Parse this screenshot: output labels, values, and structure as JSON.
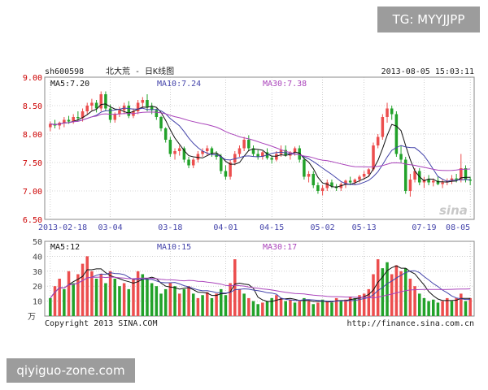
{
  "header": {
    "symbol": "sh600598",
    "name": "北大荒 - 日K线图",
    "datetime": "2013-08-05 15:03:11"
  },
  "price_panel": {
    "ma5_label": "MA5:7.20",
    "ma10_label": "MA10:7.24",
    "ma30_label": "MA30:7.38"
  },
  "volume_panel": {
    "ma5_label": "MA5:12",
    "ma10_label": "MA10:15",
    "ma30_label": "MA30:17",
    "unit_label": "万"
  },
  "footer": {
    "copyright": "Copyright 2013 SINA.COM",
    "url": "http://finance.sina.com.cn"
  },
  "watermark": "sina",
  "overlay": {
    "tag": "TG: MYYJJPP",
    "site": "qiyiguo-zone.com"
  },
  "colors": {
    "up": "#ec4e4e",
    "down": "#22a22a",
    "ma5": "#111111",
    "ma10": "#4444aa",
    "ma30": "#aa44bb",
    "axis_price": "#cc0000",
    "grid": "#b0b0b0"
  },
  "chart_data": [
    {
      "type": "candlestick",
      "title": "sh600598 北大荒 - 日K线图",
      "y_ticks": [
        "9.00",
        "8.50",
        "8.00",
        "7.50",
        "7.00",
        "6.50"
      ],
      "ylim": [
        6.5,
        9.0
      ],
      "x_tick_labels": [
        "2013-02-18",
        "03-04",
        "03-18",
        "04-01",
        "04-15",
        "05-02",
        "05-13",
        "07-19",
        "08-05"
      ],
      "x_tick_indices": [
        0,
        13,
        26,
        38,
        48,
        59,
        68,
        81,
        91
      ],
      "grid": true,
      "candles": [
        [
          8.12,
          8.22,
          8.05,
          8.18
        ],
        [
          8.18,
          8.25,
          8.1,
          8.15
        ],
        [
          8.15,
          8.22,
          8.08,
          8.2
        ],
        [
          8.2,
          8.3,
          8.12,
          8.25
        ],
        [
          8.25,
          8.32,
          8.18,
          8.22
        ],
        [
          8.22,
          8.35,
          8.18,
          8.3
        ],
        [
          8.3,
          8.4,
          8.22,
          8.28
        ],
        [
          8.28,
          8.45,
          8.22,
          8.4
        ],
        [
          8.4,
          8.55,
          8.35,
          8.5
        ],
        [
          8.5,
          8.62,
          8.42,
          8.55
        ],
        [
          8.55,
          8.6,
          8.38,
          8.45
        ],
        [
          8.45,
          8.75,
          8.4,
          8.7
        ],
        [
          8.7,
          8.75,
          8.4,
          8.45
        ],
        [
          8.45,
          8.52,
          8.2,
          8.25
        ],
        [
          8.25,
          8.38,
          8.2,
          8.35
        ],
        [
          8.35,
          8.48,
          8.3,
          8.42
        ],
        [
          8.42,
          8.55,
          8.35,
          8.5
        ],
        [
          8.5,
          8.58,
          8.28,
          8.32
        ],
        [
          8.32,
          8.45,
          8.28,
          8.4
        ],
        [
          8.4,
          8.6,
          8.35,
          8.55
        ],
        [
          8.55,
          8.65,
          8.45,
          8.6
        ],
        [
          8.6,
          8.7,
          8.4,
          8.48
        ],
        [
          8.48,
          8.55,
          8.35,
          8.42
        ],
        [
          8.42,
          8.45,
          8.25,
          8.3
        ],
        [
          8.3,
          8.32,
          8.05,
          8.1
        ],
        [
          8.1,
          8.12,
          7.85,
          7.9
        ],
        [
          7.9,
          7.95,
          7.6,
          7.65
        ],
        [
          7.65,
          7.75,
          7.55,
          7.7
        ],
        [
          7.7,
          7.8,
          7.62,
          7.75
        ],
        [
          7.75,
          7.78,
          7.5,
          7.55
        ],
        [
          7.55,
          7.6,
          7.4,
          7.45
        ],
        [
          7.45,
          7.58,
          7.4,
          7.55
        ],
        [
          7.55,
          7.7,
          7.5,
          7.65
        ],
        [
          7.65,
          7.75,
          7.6,
          7.7
        ],
        [
          7.7,
          7.8,
          7.62,
          7.75
        ],
        [
          7.75,
          7.78,
          7.6,
          7.65
        ],
        [
          7.65,
          7.7,
          7.55,
          7.6
        ],
        [
          7.6,
          7.65,
          7.3,
          7.35
        ],
        [
          7.35,
          7.45,
          7.2,
          7.25
        ],
        [
          7.25,
          7.55,
          7.2,
          7.5
        ],
        [
          7.5,
          7.7,
          7.45,
          7.65
        ],
        [
          7.65,
          7.8,
          7.6,
          7.75
        ],
        [
          7.75,
          7.95,
          7.7,
          7.9
        ],
        [
          7.9,
          7.98,
          7.7,
          7.75
        ],
        [
          7.75,
          7.8,
          7.6,
          7.65
        ],
        [
          7.65,
          7.72,
          7.55,
          7.6
        ],
        [
          7.6,
          7.7,
          7.55,
          7.68
        ],
        [
          7.68,
          7.75,
          7.55,
          7.58
        ],
        [
          7.58,
          7.62,
          7.48,
          7.55
        ],
        [
          7.55,
          7.7,
          7.52,
          7.65
        ],
        [
          7.65,
          7.8,
          7.6,
          7.72
        ],
        [
          7.72,
          7.8,
          7.6,
          7.62
        ],
        [
          7.62,
          7.7,
          7.55,
          7.68
        ],
        [
          7.68,
          7.78,
          7.62,
          7.75
        ],
        [
          7.75,
          7.8,
          7.5,
          7.55
        ],
        [
          7.55,
          7.6,
          7.2,
          7.25
        ],
        [
          7.25,
          7.35,
          7.15,
          7.3
        ],
        [
          7.3,
          7.35,
          7.05,
          7.1
        ],
        [
          7.1,
          7.15,
          6.95,
          7.0
        ],
        [
          7.0,
          7.1,
          6.92,
          7.05
        ],
        [
          7.05,
          7.2,
          7.0,
          7.15
        ],
        [
          7.15,
          7.2,
          7.05,
          7.08
        ],
        [
          7.08,
          7.12,
          7.0,
          7.05
        ],
        [
          7.05,
          7.15,
          7.0,
          7.12
        ],
        [
          7.12,
          7.2,
          7.05,
          7.18
        ],
        [
          7.18,
          7.25,
          7.1,
          7.15
        ],
        [
          7.15,
          7.22,
          7.1,
          7.2
        ],
        [
          7.2,
          7.28,
          7.15,
          7.25
        ],
        [
          7.25,
          7.35,
          7.2,
          7.3
        ],
        [
          7.3,
          7.4,
          7.25,
          7.38
        ],
        [
          7.38,
          7.85,
          7.35,
          7.8
        ],
        [
          7.8,
          8.0,
          7.75,
          7.95
        ],
        [
          7.95,
          8.35,
          7.9,
          8.3
        ],
        [
          8.3,
          8.55,
          8.2,
          8.45
        ],
        [
          8.45,
          8.5,
          8.25,
          8.35
        ],
        [
          8.35,
          8.4,
          7.6,
          7.65
        ],
        [
          7.65,
          7.8,
          7.5,
          7.55
        ],
        [
          7.55,
          7.6,
          6.95,
          7.0
        ],
        [
          7.0,
          7.3,
          6.9,
          7.2
        ],
        [
          7.2,
          7.4,
          7.15,
          7.35
        ],
        [
          7.35,
          7.4,
          7.1,
          7.15
        ],
        [
          7.15,
          7.25,
          7.05,
          7.2
        ],
        [
          7.2,
          7.28,
          7.1,
          7.15
        ],
        [
          7.15,
          7.22,
          7.08,
          7.18
        ],
        [
          7.18,
          7.25,
          7.1,
          7.12
        ],
        [
          7.12,
          7.2,
          7.05,
          7.15
        ],
        [
          7.15,
          7.22,
          7.1,
          7.18
        ],
        [
          7.18,
          7.28,
          7.12,
          7.22
        ],
        [
          7.22,
          7.3,
          7.15,
          7.2
        ],
        [
          7.2,
          7.65,
          7.15,
          7.4
        ],
        [
          7.4,
          7.45,
          7.15,
          7.2
        ],
        [
          7.2,
          7.25,
          7.1,
          7.18
        ]
      ]
    },
    {
      "type": "bar",
      "title": "",
      "y_ticks": [
        "50",
        "40",
        "30",
        "20",
        "10"
      ],
      "ylim": [
        0,
        50
      ],
      "volumes": [
        [
          12,
          0
        ],
        [
          20,
          1
        ],
        [
          25,
          1
        ],
        [
          18,
          0
        ],
        [
          30,
          1
        ],
        [
          22,
          0
        ],
        [
          28,
          1
        ],
        [
          35,
          1
        ],
        [
          40,
          1
        ],
        [
          30,
          1
        ],
        [
          25,
          0
        ],
        [
          28,
          1
        ],
        [
          22,
          0
        ],
        [
          30,
          1
        ],
        [
          25,
          0
        ],
        [
          20,
          0
        ],
        [
          22,
          1
        ],
        [
          18,
          0
        ],
        [
          25,
          1
        ],
        [
          30,
          1
        ],
        [
          28,
          0
        ],
        [
          25,
          0
        ],
        [
          22,
          0
        ],
        [
          20,
          0
        ],
        [
          15,
          0
        ],
        [
          18,
          0
        ],
        [
          22,
          1
        ],
        [
          20,
          0
        ],
        [
          15,
          1
        ],
        [
          18,
          0
        ],
        [
          20,
          1
        ],
        [
          15,
          0
        ],
        [
          12,
          1
        ],
        [
          14,
          0
        ],
        [
          16,
          1
        ],
        [
          12,
          0
        ],
        [
          15,
          1
        ],
        [
          18,
          0
        ],
        [
          14,
          0
        ],
        [
          22,
          1
        ],
        [
          38,
          1
        ],
        [
          18,
          1
        ],
        [
          15,
          0
        ],
        [
          12,
          1
        ],
        [
          10,
          0
        ],
        [
          8,
          0
        ],
        [
          9,
          1
        ],
        [
          10,
          0
        ],
        [
          12,
          0
        ],
        [
          14,
          1
        ],
        [
          12,
          1
        ],
        [
          10,
          0
        ],
        [
          11,
          1
        ],
        [
          9,
          0
        ],
        [
          10,
          1
        ],
        [
          12,
          0
        ],
        [
          10,
          1
        ],
        [
          8,
          0
        ],
        [
          9,
          1
        ],
        [
          11,
          0
        ],
        [
          10,
          1
        ],
        [
          9,
          0
        ],
        [
          12,
          1
        ],
        [
          10,
          0
        ],
        [
          11,
          1
        ],
        [
          13,
          1
        ],
        [
          12,
          0
        ],
        [
          14,
          1
        ],
        [
          15,
          1
        ],
        [
          18,
          1
        ],
        [
          28,
          1
        ],
        [
          38,
          1
        ],
        [
          32,
          0
        ],
        [
          36,
          0
        ],
        [
          28,
          1
        ],
        [
          34,
          1
        ],
        [
          30,
          1
        ],
        [
          32,
          0
        ],
        [
          25,
          1
        ],
        [
          20,
          1
        ],
        [
          15,
          0
        ],
        [
          12,
          0
        ],
        [
          10,
          0
        ],
        [
          11,
          0
        ],
        [
          9,
          0
        ],
        [
          10,
          1
        ],
        [
          12,
          1
        ],
        [
          10,
          0
        ],
        [
          12,
          1
        ],
        [
          15,
          1
        ],
        [
          10,
          0
        ],
        [
          12,
          1
        ]
      ]
    }
  ]
}
